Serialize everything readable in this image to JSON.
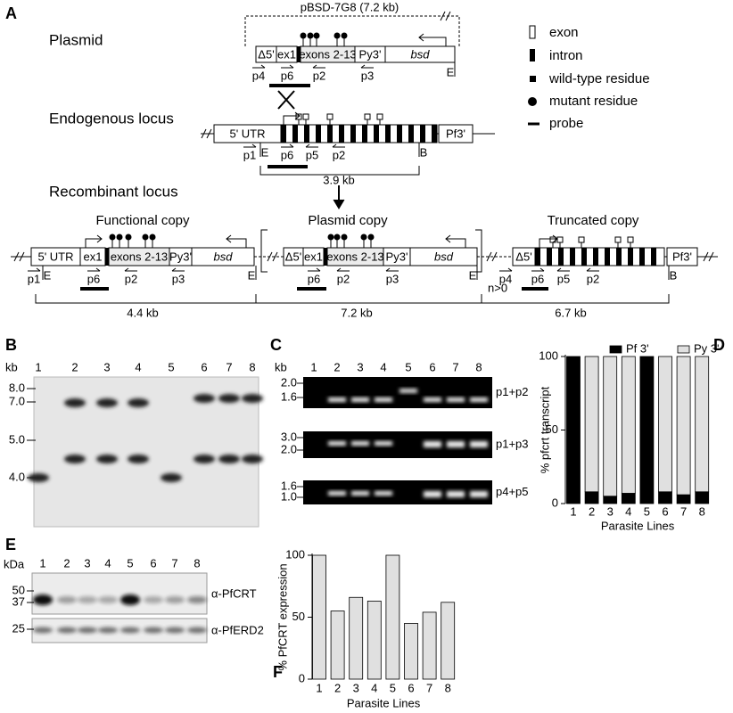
{
  "panel_a": {
    "letter": "A",
    "plasmid_name": "pBSD-7G8 (7.2 kb)",
    "rows": {
      "plasmid": "Plasmid",
      "endogenous": "Endogenous locus",
      "recombinant": "Recombinant locus"
    },
    "copies": [
      "Functional copy",
      "Plasmid copy",
      "Truncated copy"
    ],
    "legend": [
      "exon",
      "intron",
      "wild-type residue",
      "mutant residue",
      "probe"
    ],
    "segments": {
      "d5": "Δ5'",
      "ex1": "ex1",
      "exons": "exons 2-13",
      "py3": "Py3'",
      "bsd": "bsd",
      "utr": "5' UTR",
      "pf3": "Pf3'"
    },
    "primers": [
      "p1",
      "p2",
      "p3",
      "p4",
      "p5",
      "p6"
    ],
    "sites": {
      "e": "E",
      "b": "B"
    },
    "sizes": [
      "3.9 kb",
      "4.4 kb",
      "7.2 kb",
      "6.7 kb"
    ],
    "copy_number": "n>0"
  },
  "panel_b": {
    "letter": "B",
    "unit": "kb",
    "lanes": [
      "1",
      "2",
      "3",
      "4",
      "5",
      "6",
      "7",
      "8"
    ],
    "markers": [
      "8.0",
      "7.0",
      "5.0",
      "4.0"
    ]
  },
  "panel_c": {
    "letter": "C",
    "unit": "kb",
    "lanes": [
      "1",
      "2",
      "3",
      "4",
      "5",
      "6",
      "7",
      "8"
    ],
    "gels": [
      {
        "markers": [
          "2.0",
          "1.6"
        ],
        "label": "p1+p2"
      },
      {
        "markers": [
          "3.0",
          "2.0"
        ],
        "label": "p1+p3"
      },
      {
        "markers": [
          "1.6",
          "1.0"
        ],
        "label": "p4+p5"
      }
    ]
  },
  "panel_e": {
    "letter": "E",
    "unit": "kDa",
    "lanes": [
      "1",
      "2",
      "3",
      "4",
      "5",
      "6",
      "7",
      "8"
    ],
    "markers": [
      "50",
      "37",
      "25"
    ],
    "antibodies": [
      "α-PfCRT",
      "α-PfERD2"
    ]
  },
  "chart_data": [
    {
      "type": "bar",
      "stacked": true,
      "panel_label": "D",
      "y_label": "% pfcrt transcript",
      "x_label": "Parasite Lines",
      "categories": [
        "1",
        "2",
        "3",
        "4",
        "5",
        "6",
        "7",
        "8"
      ],
      "series": [
        {
          "name": "Pf 3'",
          "color": "#000000",
          "values": [
            100,
            8,
            5,
            7,
            100,
            8,
            6,
            8
          ]
        },
        {
          "name": "Py 3'",
          "color": "#e0e0e0",
          "values": [
            0,
            92,
            95,
            93,
            0,
            92,
            94,
            92
          ]
        }
      ],
      "ylim": [
        0,
        100
      ],
      "yticks": [
        0,
        50,
        100
      ],
      "legend": "top"
    },
    {
      "type": "bar",
      "panel_label": "F",
      "y_label": "% PfCRT expression",
      "x_label": "Parasite Lines",
      "categories": [
        "1",
        "2",
        "3",
        "4",
        "5",
        "6",
        "7",
        "8"
      ],
      "values": [
        100,
        55,
        66,
        63,
        100,
        45,
        54,
        62
      ],
      "color": "#e0e0e0",
      "ylim": [
        0,
        100
      ],
      "yticks": [
        0,
        50,
        100
      ]
    }
  ]
}
